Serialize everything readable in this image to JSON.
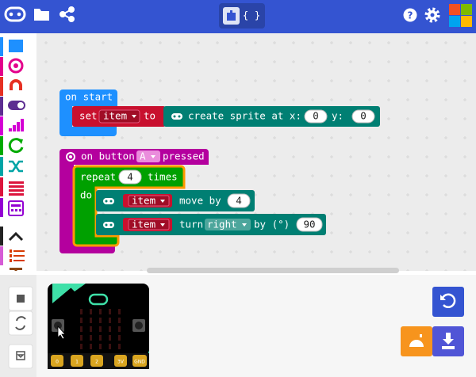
{
  "toolbar": {
    "code_toggle": "{ }",
    "help_icon": "?"
  },
  "blocks": {
    "on_start": {
      "label": "on start",
      "set": "set",
      "variable": "item",
      "to": "to",
      "create_sprite": "create sprite at x:",
      "x": 0,
      "y_label": "y:",
      "y": 0
    },
    "on_button": {
      "label": "on button",
      "button": "A",
      "pressed": "pressed",
      "repeat": {
        "label": "repeat",
        "count": 4,
        "times": "times",
        "do": "do",
        "move": {
          "variable": "item",
          "label": "move by",
          "amount": 4
        },
        "turn": {
          "variable": "item",
          "label": "turn",
          "direction": "right",
          "by": "by (°)",
          "degrees": 90
        }
      }
    }
  },
  "simulator": {
    "pins": [
      "0",
      "1",
      "2",
      "3V",
      "GND"
    ]
  }
}
